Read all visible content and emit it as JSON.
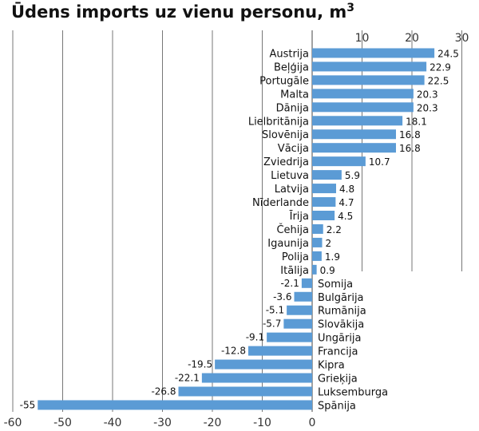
{
  "chart_data": {
    "type": "bar",
    "orientation": "horizontal",
    "title": "Ūdens imports uz vienu personu, m",
    "title_superscript": "3",
    "xlabel": "",
    "ylabel": "",
    "xlim": [
      -60,
      30
    ],
    "bottom_ticks": [
      "-60",
      "-50",
      "-40",
      "-30",
      "-20",
      "-10",
      "0"
    ],
    "top_ticks": [
      "10",
      "20",
      "30"
    ],
    "grid": true,
    "bar_color": "#5b9bd5",
    "categories": [
      "Austrija",
      "Beļģija",
      "Portugāle",
      "Malta",
      "Dānija",
      "Lielbritānija",
      "Slovēnija",
      "Vācija",
      "Zviedrija",
      "Lietuva",
      "Latvija",
      "Nīderlande",
      "Īrija",
      "Čehija",
      "Igaunija",
      "Polija",
      "Itālija",
      "Somija",
      "Bulgārija",
      "Rumānija",
      "Slovākija",
      "Ungārija",
      "Francija",
      "Kipra",
      "Grieķija",
      "Luksemburga",
      "Spānija"
    ],
    "values": [
      24.5,
      22.9,
      22.5,
      20.3,
      20.3,
      18.1,
      16.8,
      16.8,
      10.7,
      5.9,
      4.8,
      4.7,
      4.5,
      2.2,
      2,
      1.9,
      0.9,
      -2.1,
      -3.6,
      -5.1,
      -5.7,
      -9.1,
      -12.8,
      -19.5,
      -22.1,
      -26.8,
      -55
    ],
    "value_labels": [
      "24.5",
      "22.9",
      "22.5",
      "20.3",
      "20.3",
      "18.1",
      "16.8",
      "16.8",
      "10.7",
      "5.9",
      "4.8",
      "4.7",
      "4.5",
      "2.2",
      "2",
      "1.9",
      "0.9",
      "-2.1",
      "-3.6",
      "-5.1",
      "-5.7",
      "-9.1",
      "-12.8",
      "-19.5",
      "-22.1",
      "-26.8",
      "-55"
    ]
  }
}
